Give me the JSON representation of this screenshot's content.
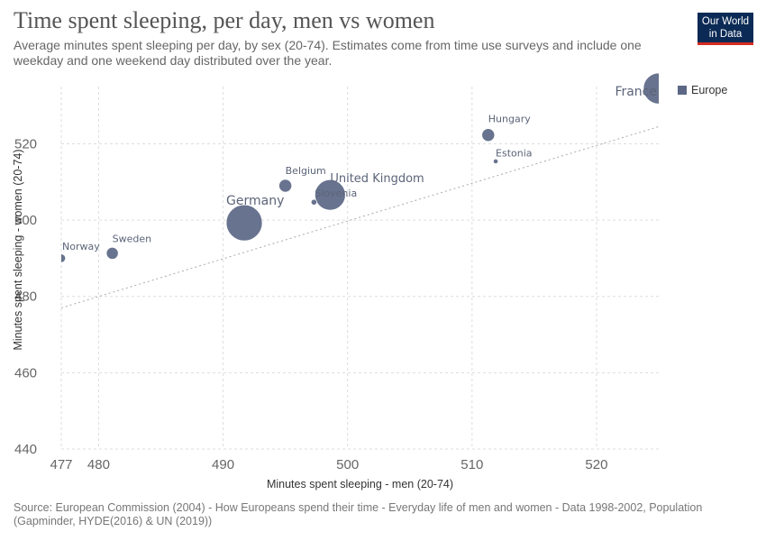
{
  "title": "Time spent sleeping, per day, men vs women",
  "subtitle": "Average minutes spent sleeping per day, by sex (20-74). Estimates come from time use surveys and include one weekday and one weekend day distributed over the year.",
  "logo": {
    "line1": "Our World",
    "line2": "in Data"
  },
  "source": "Source: European Commission (2004) - How Europeans spend their time - Everyday life of men and women - Data 1998-2002, Population (Gapminder, HYDE(2016) & UN (2019))",
  "colors": {
    "point": "#5b6785",
    "grid": "#dddddd",
    "trend": "#aaaaaa"
  },
  "chart_data": {
    "type": "scatter",
    "xlabel": "Minutes spent sleeping - men (20-74)",
    "ylabel": "Minutes spent sleeping - women (20-74)",
    "xlim": [
      477,
      525
    ],
    "ylim": [
      440,
      535
    ],
    "x_ticks": [
      477,
      480,
      490,
      500,
      510,
      520
    ],
    "y_ticks": [
      440,
      460,
      480,
      500,
      520
    ],
    "grid": true,
    "legend": {
      "position": "top-right",
      "entries": [
        "Europe"
      ]
    },
    "trendline": {
      "x": [
        477,
        525
      ],
      "y": [
        477,
        524.5
      ],
      "style": "dotted"
    },
    "series": [
      {
        "name": "Europe",
        "points": [
          {
            "label": "Norway",
            "x": 477,
            "y": 490,
            "population": 4.5
          },
          {
            "label": "Sweden",
            "x": 481.1,
            "y": 491.3,
            "population": 8.9
          },
          {
            "label": "Germany",
            "x": 491.7,
            "y": 499.3,
            "population": 82
          },
          {
            "label": "Belgium",
            "x": 495,
            "y": 509,
            "population": 10.2
          },
          {
            "label": "Slovenia",
            "x": 497.3,
            "y": 504.7,
            "population": 2
          },
          {
            "label": "United Kingdom",
            "x": 498.6,
            "y": 506.6,
            "population": 59
          },
          {
            "label": "Hungary",
            "x": 511.3,
            "y": 522.3,
            "population": 10.2
          },
          {
            "label": "Estonia",
            "x": 511.9,
            "y": 515.4,
            "population": 1.4
          },
          {
            "label": "France",
            "x": 525,
            "y": 534.5,
            "population": 60
          }
        ]
      }
    ]
  }
}
